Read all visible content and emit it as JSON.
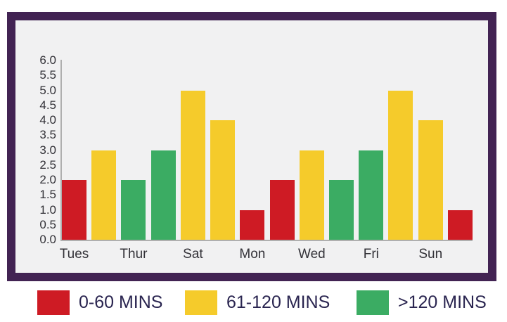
{
  "chart_data": {
    "type": "bar",
    "title": "",
    "x_tick_labels": [
      "Tues",
      "Thur",
      "Sat",
      "Mon",
      "Wed",
      "Fri",
      "Sun"
    ],
    "y_tick_labels": [
      "6.0",
      "5.5",
      "5.0",
      "4.5",
      "4.0",
      "3.5",
      "3.0",
      "2.5",
      "2.0",
      "1.5",
      "1.0",
      "0.5",
      "0.0"
    ],
    "ylim": [
      0,
      6
    ],
    "y_tick_step": 0.5,
    "grid": false,
    "legend_position": "bottom",
    "series_colors": {
      "0-60 MINS": "#CE1B24",
      "61-120 MINS": "#F5CB2B",
      ">120 MINS": "#3BAC63"
    },
    "bars": [
      {
        "x_label": "Tues",
        "series": "0-60 MINS",
        "value": 2.0
      },
      {
        "x_label": "",
        "series": "61-120 MINS",
        "value": 3.0
      },
      {
        "x_label": "Thur",
        "series": ">120 MINS",
        "value": 2.0
      },
      {
        "x_label": "",
        "series": ">120 MINS",
        "value": 3.0
      },
      {
        "x_label": "Sat",
        "series": "61-120 MINS",
        "value": 5.0
      },
      {
        "x_label": "",
        "series": "61-120 MINS",
        "value": 4.0
      },
      {
        "x_label": "Mon",
        "series": "0-60 MINS",
        "value": 1.0
      },
      {
        "x_label": "",
        "series": "0-60 MINS",
        "value": 2.0
      },
      {
        "x_label": "Wed",
        "series": "61-120 MINS",
        "value": 3.0
      },
      {
        "x_label": "",
        "series": ">120 MINS",
        "value": 2.0
      },
      {
        "x_label": "Fri",
        "series": ">120 MINS",
        "value": 3.0
      },
      {
        "x_label": "",
        "series": "61-120 MINS",
        "value": 5.0
      },
      {
        "x_label": "Sun",
        "series": "61-120 MINS",
        "value": 4.0
      },
      {
        "x_label": "",
        "series": "0-60 MINS",
        "value": 1.0
      }
    ],
    "legend": [
      {
        "label": "0-60 MINS",
        "color": "#CE1B24"
      },
      {
        "label": "61-120 MINS",
        "color": "#F5CB2B"
      },
      {
        "label": ">120 MINS",
        "color": "#3BAC63"
      }
    ]
  },
  "colors": {
    "frame_border": "#422353",
    "panel_background": "#F1F1F2",
    "axis_line": "#AFAFAF",
    "axis_text": "#333238",
    "legend_text": "#2A2550",
    "page_background": "#FFFFFF"
  }
}
